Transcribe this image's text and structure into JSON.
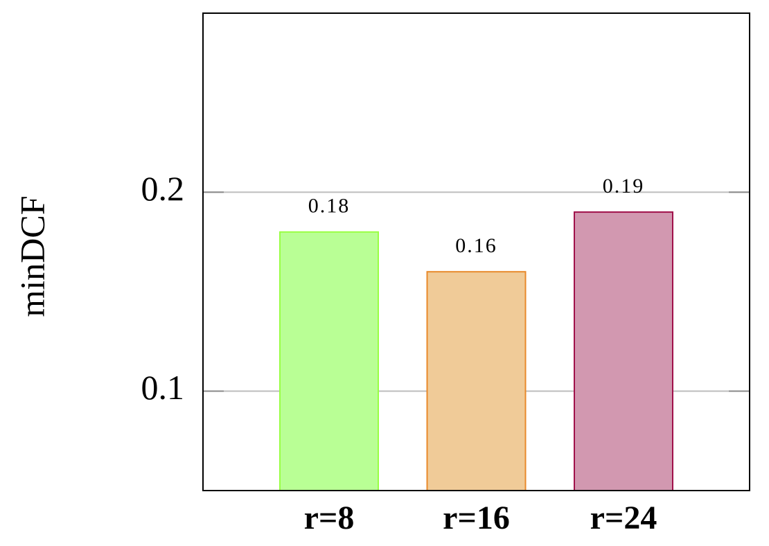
{
  "chart_data": {
    "type": "bar",
    "y_label": "minDCF",
    "categories": [
      "r=8",
      "r=16",
      "r=24"
    ],
    "values": [
      0.18,
      0.16,
      0.19
    ],
    "colors": [
      "#b9ff95",
      "#f0cb98",
      "#d298b0"
    ],
    "edge_colors": [
      "#99ff44",
      "#e8892a",
      "#a0104a"
    ],
    "ylim": [
      0.05,
      0.29
    ],
    "yticks": [
      0.1,
      0.2
    ],
    "grid": true
  }
}
